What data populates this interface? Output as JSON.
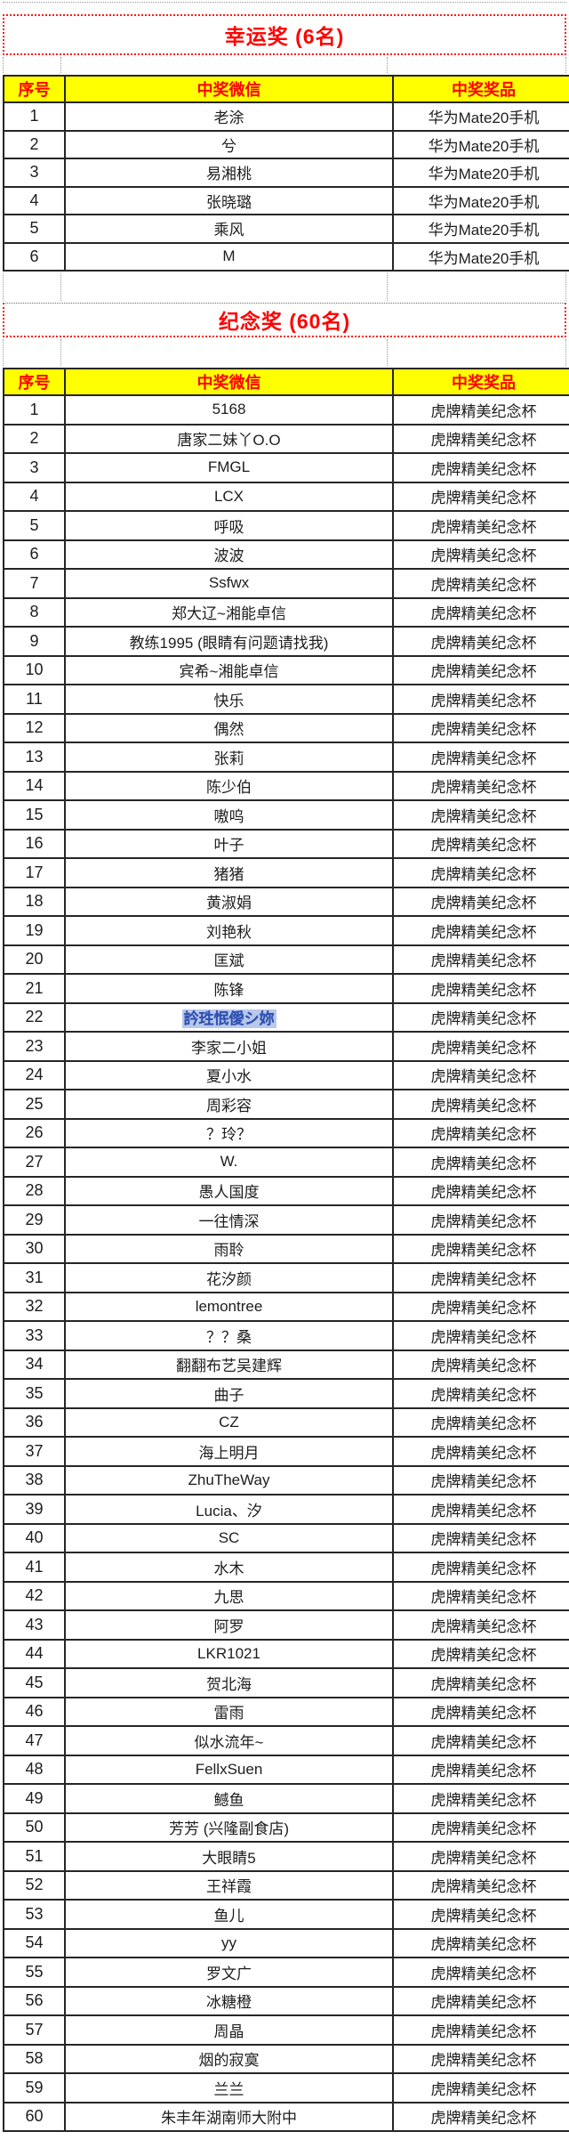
{
  "colors": {
    "title_red": "#fe0000",
    "header_yellow": "#ffff00",
    "grid_black": "#262626",
    "dotted_gray": "#9a9a9a",
    "highlight_blue_text": "#2d4fb0",
    "highlight_blue_bg": "#b9c9ea"
  },
  "sections": [
    {
      "title": "幸运奖 (6名)",
      "headers": [
        "序号",
        "中奖微信",
        "中奖奖品"
      ],
      "rows": [
        [
          "1",
          "老涂",
          "华为Mate20手机"
        ],
        [
          "2",
          "兮",
          "华为Mate20手机"
        ],
        [
          "3",
          "易湘桃",
          "华为Mate20手机"
        ],
        [
          "4",
          "张晓璐",
          "华为Mate20手机"
        ],
        [
          "5",
          "乘风",
          "华为Mate20手机"
        ],
        [
          "6",
          "M",
          "华为Mate20手机"
        ]
      ]
    },
    {
      "title": "纪念奖 (60名)",
      "headers": [
        "序号",
        "中奖微信",
        "中奖奖品"
      ],
      "rows": [
        [
          "1",
          "5168",
          "虎牌精美纪念杯"
        ],
        [
          "2",
          "唐家二妹丫O.O",
          "虎牌精美纪念杯"
        ],
        [
          "3",
          "FMGL",
          "虎牌精美纪念杯"
        ],
        [
          "4",
          "LCX",
          "虎牌精美纪念杯"
        ],
        [
          "5",
          "呼吸",
          "虎牌精美纪念杯"
        ],
        [
          "6",
          "波波",
          "虎牌精美纪念杯"
        ],
        [
          "7",
          "Ssfwx",
          "虎牌精美纪念杯"
        ],
        [
          "8",
          "郑大辽~湘能卓信",
          "虎牌精美纪念杯"
        ],
        [
          "9",
          "教练1995 (眼睛有问题请找我)",
          "虎牌精美纪念杯"
        ],
        [
          "10",
          "宾希~湘能卓信",
          "虎牌精美纪念杯"
        ],
        [
          "11",
          "快乐",
          "虎牌精美纪念杯"
        ],
        [
          "12",
          "偶然",
          "虎牌精美纪念杯"
        ],
        [
          "13",
          "张莉",
          "虎牌精美纪念杯"
        ],
        [
          "14",
          "陈少伯",
          "虎牌精美纪念杯"
        ],
        [
          "15",
          "嗷呜",
          "虎牌精美纪念杯"
        ],
        [
          "16",
          "叶子",
          "虎牌精美纪念杯"
        ],
        [
          "17",
          "猪猪",
          "虎牌精美纪念杯"
        ],
        [
          "18",
          "黄淑娟",
          "虎牌精美纪念杯"
        ],
        [
          "19",
          "刘艳秋",
          "虎牌精美纪念杯"
        ],
        [
          "20",
          "匡斌",
          "虎牌精美纪念杯"
        ],
        [
          "21",
          "陈锋",
          "虎牌精美纪念杯"
        ],
        [
          "22",
          "訡珄怋僾シ妳",
          "虎牌精美纪念杯",
          "blue"
        ],
        [
          "23",
          "李家二小姐",
          "虎牌精美纪念杯"
        ],
        [
          "24",
          "夏小水",
          "虎牌精美纪念杯"
        ],
        [
          "25",
          "周彩容",
          "虎牌精美纪念杯"
        ],
        [
          "26",
          "？玲？",
          "虎牌精美纪念杯"
        ],
        [
          "27",
          "W.",
          "虎牌精美纪念杯"
        ],
        [
          "28",
          "愚人国度",
          "虎牌精美纪念杯"
        ],
        [
          "29",
          "一往情深",
          "虎牌精美纪念杯"
        ],
        [
          "30",
          "雨聆",
          "虎牌精美纪念杯"
        ],
        [
          "31",
          "花汐颜",
          "虎牌精美纪念杯"
        ],
        [
          "32",
          "lemontree",
          "虎牌精美纪念杯"
        ],
        [
          "33",
          "？？桑",
          "虎牌精美纪念杯"
        ],
        [
          "34",
          "翻翻布艺吴建辉",
          "虎牌精美纪念杯"
        ],
        [
          "35",
          "曲子",
          "虎牌精美纪念杯"
        ],
        [
          "36",
          "CZ",
          "虎牌精美纪念杯"
        ],
        [
          "37",
          "海上明月",
          "虎牌精美纪念杯"
        ],
        [
          "38",
          "ZhuTheWay",
          "虎牌精美纪念杯"
        ],
        [
          "39",
          "Lucia、汐",
          "虎牌精美纪念杯"
        ],
        [
          "40",
          "SC",
          "虎牌精美纪念杯"
        ],
        [
          "41",
          "水木",
          "虎牌精美纪念杯"
        ],
        [
          "42",
          "九思",
          "虎牌精美纪念杯"
        ],
        [
          "43",
          "阿罗",
          "虎牌精美纪念杯"
        ],
        [
          "44",
          "LKR1021",
          "虎牌精美纪念杯"
        ],
        [
          "45",
          "贺北海",
          "虎牌精美纪念杯"
        ],
        [
          "46",
          "雷雨",
          "虎牌精美纪念杯"
        ],
        [
          "47",
          "似水流年~",
          "虎牌精美纪念杯"
        ],
        [
          "48",
          "FellxSuen",
          "虎牌精美纪念杯"
        ],
        [
          "49",
          "鳡鱼",
          "虎牌精美纪念杯"
        ],
        [
          "50",
          "芳芳 (兴隆副食店)",
          "虎牌精美纪念杯"
        ],
        [
          "51",
          "大眼睛5",
          "虎牌精美纪念杯"
        ],
        [
          "52",
          "王祥霞",
          "虎牌精美纪念杯"
        ],
        [
          "53",
          "鱼儿",
          "虎牌精美纪念杯"
        ],
        [
          "54",
          "yy",
          "虎牌精美纪念杯"
        ],
        [
          "55",
          "罗文广",
          "虎牌精美纪念杯"
        ],
        [
          "56",
          "冰糖橙",
          "虎牌精美纪念杯"
        ],
        [
          "57",
          "周晶",
          "虎牌精美纪念杯"
        ],
        [
          "58",
          "烟的寂寞",
          "虎牌精美纪念杯"
        ],
        [
          "59",
          "兰兰",
          "虎牌精美纪念杯"
        ],
        [
          "60",
          "朱丰年湖南师大附中",
          "虎牌精美纪念杯"
        ]
      ]
    }
  ]
}
